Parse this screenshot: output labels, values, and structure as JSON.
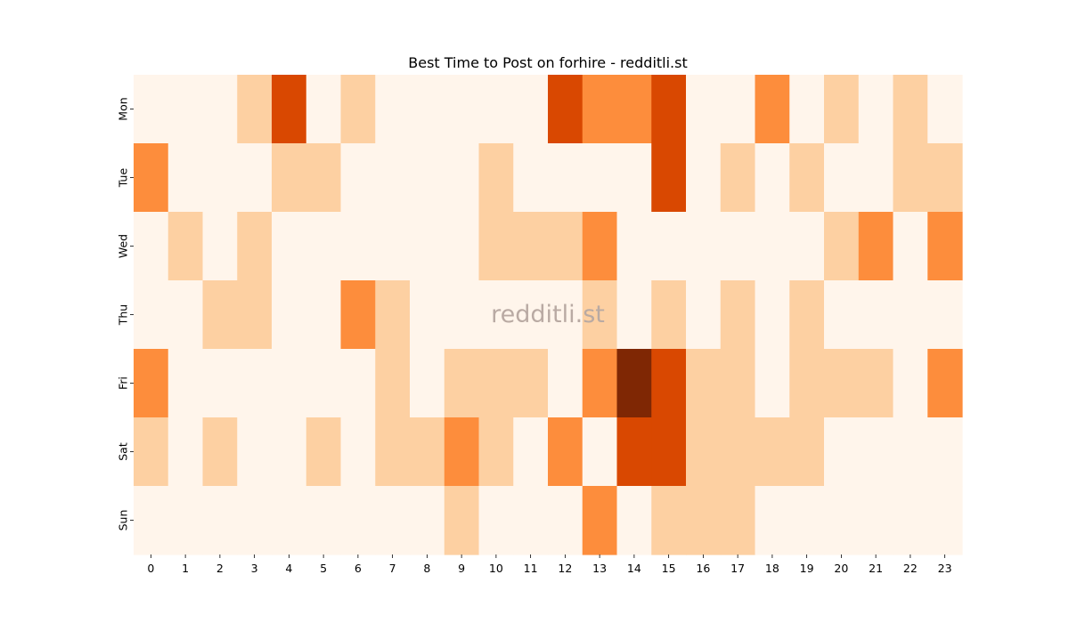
{
  "chart_data": {
    "type": "heatmap",
    "title": "Best Time to Post on forhire - redditli.st",
    "watermark": "redditli.st",
    "x_categories": [
      "0",
      "1",
      "2",
      "3",
      "4",
      "5",
      "6",
      "7",
      "8",
      "9",
      "10",
      "11",
      "12",
      "13",
      "14",
      "15",
      "16",
      "17",
      "18",
      "19",
      "20",
      "21",
      "22",
      "23"
    ],
    "y_categories": [
      "Mon",
      "Tue",
      "Wed",
      "Thu",
      "Fri",
      "Sat",
      "Sun"
    ],
    "xlabel": "",
    "ylabel": "",
    "colormap": "Oranges",
    "colorbar": false,
    "grid": false,
    "values": [
      [
        0,
        0,
        0,
        1,
        3,
        0,
        1,
        0,
        0,
        0,
        0,
        0,
        3,
        2,
        2,
        3,
        0,
        0,
        2,
        0,
        1,
        0,
        1,
        0
      ],
      [
        2,
        0,
        0,
        0,
        1,
        1,
        0,
        0,
        0,
        0,
        1,
        0,
        0,
        0,
        0,
        3,
        0,
        1,
        0,
        1,
        0,
        0,
        1,
        1
      ],
      [
        0,
        1,
        0,
        1,
        0,
        0,
        0,
        0,
        0,
        0,
        1,
        1,
        1,
        2,
        0,
        0,
        0,
        0,
        0,
        0,
        1,
        2,
        0,
        2
      ],
      [
        0,
        0,
        1,
        1,
        0,
        0,
        2,
        1,
        0,
        0,
        0,
        0,
        0,
        1,
        0,
        1,
        0,
        1,
        0,
        1,
        0,
        0,
        0,
        0
      ],
      [
        2,
        0,
        0,
        0,
        0,
        0,
        0,
        1,
        0,
        1,
        1,
        1,
        0,
        2,
        4,
        3,
        1,
        1,
        0,
        1,
        1,
        1,
        0,
        2
      ],
      [
        1,
        0,
        1,
        0,
        0,
        1,
        0,
        1,
        1,
        2,
        1,
        0,
        2,
        0,
        3,
        3,
        1,
        1,
        1,
        1,
        0,
        0,
        0,
        0
      ],
      [
        0,
        0,
        0,
        0,
        0,
        0,
        0,
        0,
        0,
        1,
        0,
        0,
        0,
        2,
        0,
        1,
        1,
        1,
        0,
        0,
        0,
        0,
        0,
        0
      ]
    ],
    "value_colors": [
      "#fff5eb",
      "#fdd0a2",
      "#fd8d3c",
      "#d94801",
      "#7f2704"
    ]
  }
}
